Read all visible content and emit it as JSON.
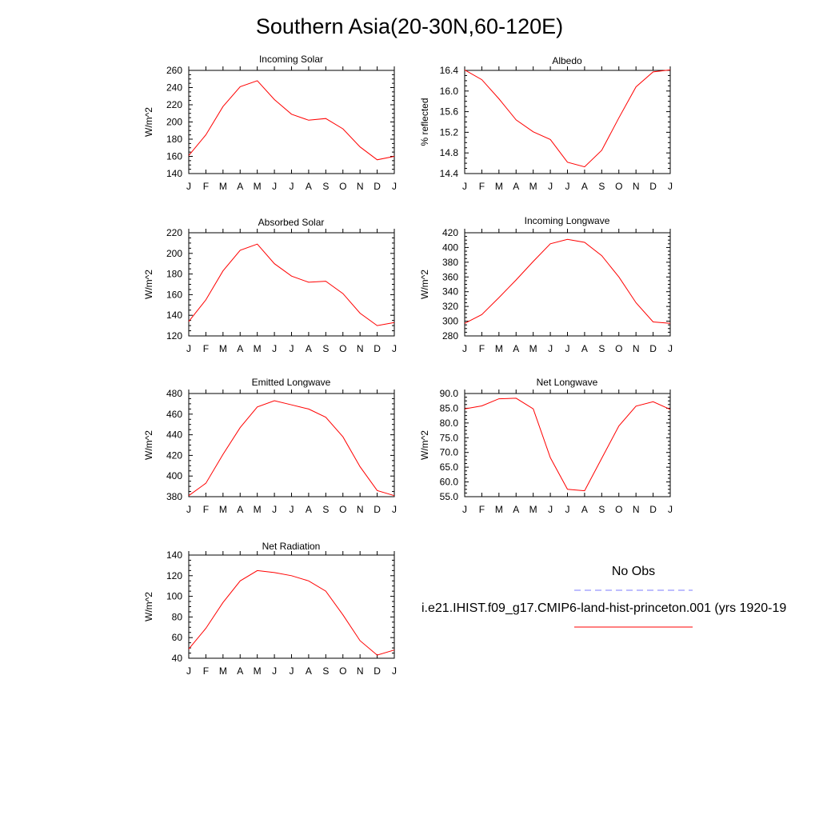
{
  "title": "Southern Asia(20-30N,60-120E)",
  "legend": {
    "obs_label": "No Obs",
    "obs_color": "#7b7bff",
    "model_label": "i.e21.IHIST.f09_g17.CMIP6-land-hist-princeton.001 (yrs 1920-19",
    "model_color": "#ff0000"
  },
  "chart_data": [
    {
      "type": "line",
      "title": "Incoming Solar",
      "ylabel": "W/m^2",
      "categories": [
        "J",
        "F",
        "M",
        "A",
        "M",
        "J",
        "J",
        "A",
        "S",
        "O",
        "N",
        "D",
        "J"
      ],
      "ylim": [
        140,
        260
      ],
      "yticks": [
        "140",
        "160",
        "180",
        "200",
        "220",
        "240",
        "260"
      ],
      "series": [
        {
          "values": [
            161,
            185,
            218,
            241,
            248,
            226,
            209,
            202,
            204,
            192,
            171,
            156,
            160
          ]
        }
      ]
    },
    {
      "type": "line",
      "title": "Albedo",
      "ylabel": "% reflected",
      "categories": [
        "J",
        "F",
        "M",
        "A",
        "M",
        "J",
        "J",
        "A",
        "S",
        "O",
        "N",
        "D",
        "J"
      ],
      "ylim": [
        14.4,
        16.4
      ],
      "yticks": [
        "14.4",
        "14.8",
        "15.2",
        "15.6",
        "16.0",
        "16.4"
      ],
      "series": [
        {
          "values": [
            16.41,
            16.22,
            15.85,
            15.44,
            15.21,
            15.06,
            14.62,
            14.53,
            14.85,
            15.48,
            16.08,
            16.37,
            16.41
          ]
        }
      ]
    },
    {
      "type": "line",
      "title": "Absorbed Solar",
      "ylabel": "W/m^2",
      "categories": [
        "J",
        "F",
        "M",
        "A",
        "M",
        "J",
        "J",
        "A",
        "S",
        "O",
        "N",
        "D",
        "J"
      ],
      "ylim": [
        120,
        220
      ],
      "yticks": [
        "120",
        "140",
        "160",
        "180",
        "200",
        "220"
      ],
      "series": [
        {
          "values": [
            134,
            155,
            183,
            203,
            209,
            190,
            178,
            172,
            173,
            161,
            142,
            130,
            133
          ]
        }
      ]
    },
    {
      "type": "line",
      "title": "Incoming Longwave",
      "ylabel": "W/m^2",
      "categories": [
        "J",
        "F",
        "M",
        "A",
        "M",
        "J",
        "J",
        "A",
        "S",
        "O",
        "N",
        "D",
        "J"
      ],
      "ylim": [
        280,
        420
      ],
      "yticks": [
        "280",
        "300",
        "320",
        "340",
        "360",
        "380",
        "400",
        "420"
      ],
      "series": [
        {
          "values": [
            297,
            309,
            332,
            356,
            381,
            405,
            411,
            407,
            389,
            360,
            325,
            299,
            297
          ]
        }
      ]
    },
    {
      "type": "line",
      "title": "Emitted Longwave",
      "ylabel": "W/m^2",
      "categories": [
        "J",
        "F",
        "M",
        "A",
        "M",
        "J",
        "J",
        "A",
        "S",
        "O",
        "N",
        "D",
        "J"
      ],
      "ylim": [
        380,
        480
      ],
      "yticks": [
        "380",
        "400",
        "420",
        "440",
        "460",
        "480"
      ],
      "series": [
        {
          "values": [
            381,
            393,
            421,
            447,
            467,
            473,
            469,
            465,
            457,
            438,
            409,
            386,
            381
          ]
        }
      ]
    },
    {
      "type": "line",
      "title": "Net Longwave",
      "ylabel": "W/m^2",
      "categories": [
        "J",
        "F",
        "M",
        "A",
        "M",
        "J",
        "J",
        "A",
        "S",
        "O",
        "N",
        "D",
        "J"
      ],
      "ylim": [
        55.0,
        90.0
      ],
      "yticks": [
        "55.0",
        "60.0",
        "65.0",
        "70.0",
        "75.0",
        "80.0",
        "85.0",
        "90.0"
      ],
      "series": [
        {
          "values": [
            84.8,
            85.8,
            88.2,
            88.4,
            84.8,
            68.2,
            57.5,
            57.0,
            68.0,
            79.0,
            85.7,
            87.2,
            84.6
          ]
        }
      ]
    },
    {
      "type": "line",
      "title": "Net Radiation",
      "ylabel": "W/m^2",
      "categories": [
        "J",
        "F",
        "M",
        "A",
        "M",
        "J",
        "J",
        "A",
        "S",
        "O",
        "N",
        "D",
        "J"
      ],
      "ylim": [
        40,
        140
      ],
      "yticks": [
        "40",
        "60",
        "80",
        "100",
        "120",
        "140"
      ],
      "series": [
        {
          "values": [
            49,
            69,
            94,
            115,
            125,
            123,
            120,
            115,
            105,
            82,
            57,
            43,
            48
          ]
        }
      ]
    }
  ]
}
